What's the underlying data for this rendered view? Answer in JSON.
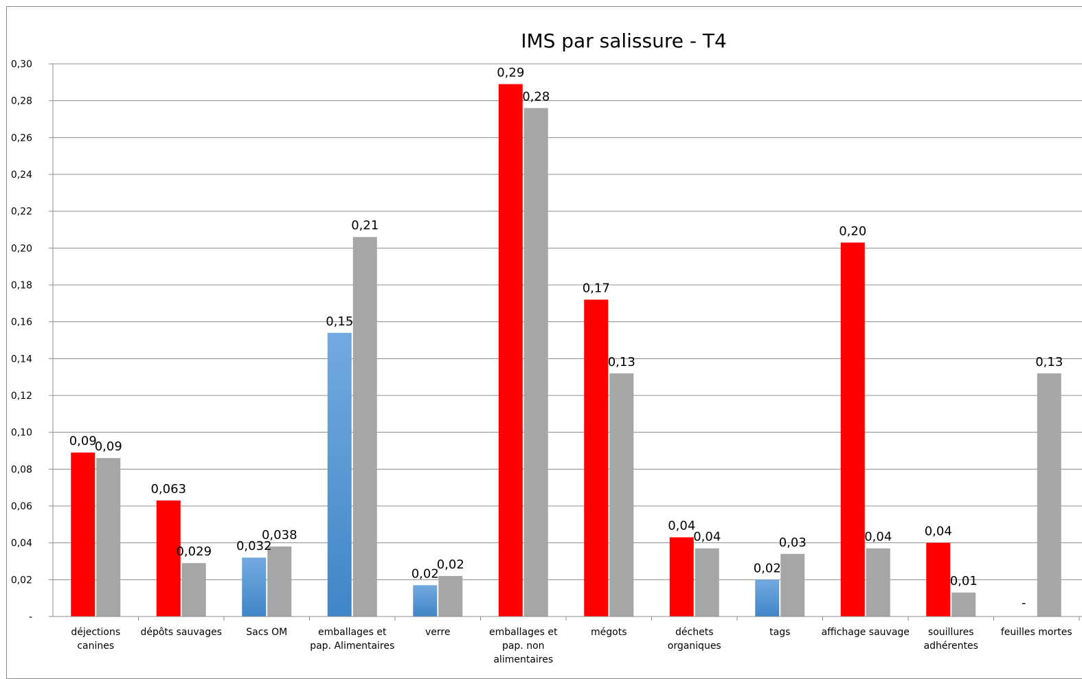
{
  "chart_data": {
    "type": "bar",
    "title": "IMS par salissure - T4",
    "xlabel": "",
    "ylabel": "",
    "ylim": [
      0,
      0.3
    ],
    "y_ticks": [
      0,
      0.02,
      0.04,
      0.06,
      0.08,
      0.1,
      0.12,
      0.14,
      0.16,
      0.18,
      0.2,
      0.22,
      0.24,
      0.26,
      0.28,
      0.3
    ],
    "y_tick_labels": [
      "-",
      "0,02",
      "0,04",
      "0,06",
      "0,08",
      "0,10",
      "0,12",
      "0,14",
      "0,16",
      "0,18",
      "0,20",
      "0,22",
      "0,24",
      "0,26",
      "0,28",
      "0,30"
    ],
    "grid": true,
    "legend": "none",
    "categories": [
      [
        "déjections",
        "canines"
      ],
      [
        "dépôts sauvages"
      ],
      [
        "Sacs OM"
      ],
      [
        "emballages et",
        "pap. Alimentaires"
      ],
      [
        "verre"
      ],
      [
        "emballages et",
        "pap. non",
        "alimentaires"
      ],
      [
        "mégots"
      ],
      [
        "déchets",
        "organiques"
      ],
      [
        "tags"
      ],
      [
        "affichage sauvage"
      ],
      [
        "souillures",
        "adhérentes"
      ],
      [
        "feuilles mortes"
      ]
    ],
    "series": [
      {
        "values": [
          0.089,
          0.063,
          0.032,
          0.154,
          0.017,
          0.289,
          0.172,
          0.043,
          0.02,
          0.203,
          0.04,
          0
        ],
        "labels": [
          "0,09",
          "0,063",
          "0,032",
          "0,15",
          "0,02",
          "0,29",
          "0,17",
          "0,04",
          "0,02",
          "0,20",
          "0,04",
          "-"
        ],
        "colors": [
          "#ff0000",
          "#ff0000",
          "#5b9bd5",
          "#5b9bd5",
          "#5b9bd5",
          "#ff0000",
          "#ff0000",
          "#ff0000",
          "#5b9bd5",
          "#ff0000",
          "#ff0000",
          "#ff0000"
        ]
      },
      {
        "values": [
          0.086,
          0.029,
          0.038,
          0.206,
          0.022,
          0.276,
          0.132,
          0.037,
          0.034,
          0.037,
          0.013,
          0.132
        ],
        "labels": [
          "0,09",
          "0,029",
          "0,038",
          "0,21",
          "0,02",
          "0,28",
          "0,13",
          "0,04",
          "0,03",
          "0,04",
          "0,01",
          "0,13"
        ],
        "color": "#a6a6a6"
      }
    ]
  }
}
